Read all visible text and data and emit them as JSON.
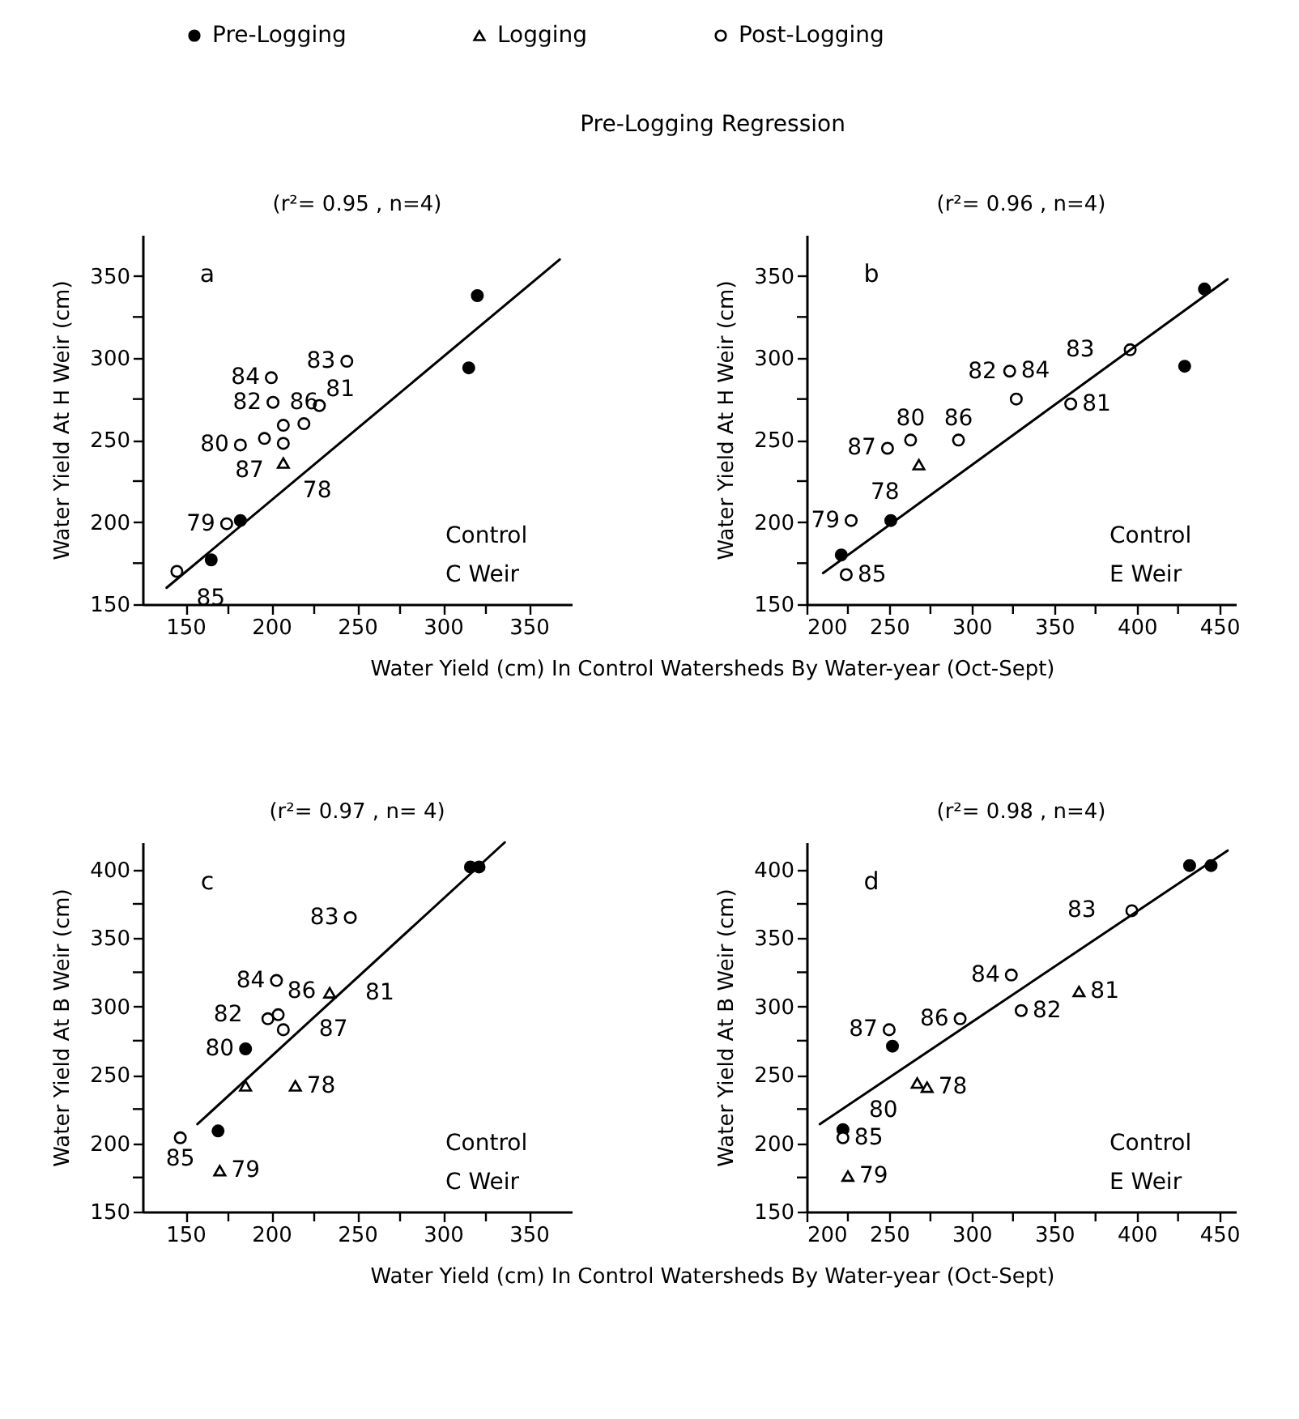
{
  "chart_data": [
    {
      "type": "scatter",
      "title": "a",
      "subtitle": "(r²= 0.95 , n=4)",
      "xlabel": "Water Yield (cm) In Control Watersheds By Water-year (Oct-Sept)",
      "ylabel": "Water Yield At H Weir (cm)",
      "legend": "top",
      "xlim": [
        125,
        375
      ],
      "ylim": [
        150,
        375
      ],
      "xticks": [
        150,
        {
          "value": 175,
          "label": null
        },
        200,
        {
          "value": 225,
          "label": null
        },
        250,
        {
          "value": 275,
          "label": null
        },
        300,
        {
          "value": 325,
          "label": null
        },
        350
      ],
      "yticks": [
        150,
        {
          "value": 175,
          "label": null
        },
        200,
        {
          "value": 225,
          "label": null
        },
        250,
        {
          "value": 275,
          "label": null
        },
        300,
        {
          "value": 325,
          "label": null
        },
        350
      ],
      "series": [
        {
          "name": "Pre-Logging",
          "type": "scatter",
          "marker": "circle",
          "color": "#000000",
          "x": [
            165,
            182,
            315,
            320
          ],
          "values": [
            177,
            201,
            294,
            338
          ]
        },
        {
          "name": "Logging",
          "type": "scatter",
          "marker": "triangle",
          "color": "#ffffff",
          "x": [
            207
          ],
          "values": [
            236
          ]
        },
        {
          "name": "Post-Logging",
          "type": "scatter",
          "marker": "circle",
          "color": "#ffffff",
          "x": [
            145,
            174,
            182,
            196,
            200,
            201,
            207,
            207,
            219,
            228,
            244
          ],
          "values": [
            170,
            199,
            247,
            251,
            288,
            273,
            259,
            248,
            260,
            271,
            298
          ]
        },
        {
          "type": "line",
          "color": "#000000",
          "x": [
            139,
            368
          ],
          "values": [
            160,
            360
          ]
        }
      ],
      "annotations": [
        {
          "text": "Pre-Logging Regression"
        },
        "Control",
        "C Weir",
        {
          "text": "84",
          "x": 200,
          "y": 288
        },
        {
          "text": "82",
          "x": 201,
          "y": 273
        },
        {
          "text": "80",
          "x": 182,
          "y": 247
        },
        {
          "text": "86",
          "x": 219,
          "y": 260
        },
        {
          "text": "87",
          "x": 207,
          "y": 248
        },
        {
          "text": "83",
          "x": 244,
          "y": 298
        },
        {
          "text": "81",
          "x": 228,
          "y": 271
        },
        {
          "text": "79",
          "x": 174,
          "y": 199
        },
        {
          "text": "78",
          "x": 207,
          "y": 236
        },
        {
          "text": "85",
          "x": 145,
          "y": 170
        }
      ]
    },
    {
      "type": "scatter",
      "title": "b",
      "subtitle": "(r²= 0.96 , n=4)",
      "ylabel": "Water Yield At H Weir (cm)",
      "xlim": [
        200,
        460
      ],
      "ylim": [
        150,
        375
      ],
      "xticks": [
        200,
        {
          "value": 225,
          "label": null
        },
        250,
        {
          "value": 275,
          "label": null
        },
        300,
        {
          "value": 325,
          "label": null
        },
        350,
        {
          "value": 375,
          "label": null
        },
        400,
        {
          "value": 425,
          "label": null
        },
        450
      ],
      "yticks": [
        150,
        {
          "value": 175,
          "label": null
        },
        200,
        {
          "value": 225,
          "label": null
        },
        250,
        {
          "value": 275,
          "label": null
        },
        300,
        {
          "value": 325,
          "label": null
        },
        350
      ],
      "series": [
        {
          "type": "scatter",
          "marker": "circle",
          "color": "#000000",
          "x": [
            221,
            251,
            429,
            441
          ],
          "values": [
            180,
            201,
            295,
            342
          ]
        },
        {
          "type": "scatter",
          "marker": "triangle",
          "color": "#ffffff",
          "x": [
            268
          ],
          "values": [
            235
          ]
        },
        {
          "type": "scatter",
          "marker": "circle",
          "color": "#ffffff",
          "x": [
            224,
            227,
            249,
            263,
            292,
            323,
            327,
            360,
            396
          ],
          "values": [
            168,
            201,
            245,
            250,
            250,
            292,
            275,
            272,
            305
          ]
        },
        {
          "type": "line",
          "color": "#000000",
          "x": [
            210,
            455
          ],
          "values": [
            169,
            348
          ]
        }
      ],
      "annotations": [
        "Control",
        "E Weir",
        {
          "text": "80",
          "x": 263,
          "y": 250
        },
        {
          "text": "87",
          "x": 249,
          "y": 245
        },
        {
          "text": "79",
          "x": 227,
          "y": 201
        },
        {
          "text": "78",
          "x": 268,
          "y": 235
        },
        {
          "text": "85",
          "x": 224,
          "y": 168
        },
        {
          "text": "86",
          "x": 292,
          "y": 250
        },
        {
          "text": "82",
          "x": 327,
          "y": 275
        },
        {
          "text": "84",
          "x": 323,
          "y": 292
        },
        {
          "text": "83",
          "x": 396,
          "y": 305
        },
        {
          "text": "81",
          "x": 360,
          "y": 272
        }
      ]
    },
    {
      "type": "scatter",
      "title": "c",
      "subtitle": "(r²= 0.97 , n= 4)",
      "xlabel": "Water Yield (cm) In Control Watersheds By Water-year (Oct-Sept)",
      "ylabel": "Water Yield At B Weir (cm)",
      "xlim": [
        125,
        375
      ],
      "ylim": [
        150,
        420
      ],
      "xticks": [
        150,
        {
          "value": 175,
          "label": null
        },
        200,
        {
          "value": 225,
          "label": null
        },
        250,
        {
          "value": 275,
          "label": null
        },
        300,
        {
          "value": 325,
          "label": null
        },
        350
      ],
      "yticks": [
        150,
        {
          "value": 175,
          "label": null
        },
        200,
        {
          "value": 225,
          "label": null
        },
        250,
        {
          "value": 275,
          "label": null
        },
        300,
        {
          "value": 325,
          "label": null
        },
        350,
        {
          "value": 375,
          "label": null
        },
        400
      ],
      "series": [
        {
          "type": "scatter",
          "marker": "circle",
          "color": "#000000",
          "x": [
            169,
            185,
            316,
            321
          ],
          "values": [
            209,
            269,
            402,
            402
          ]
        },
        {
          "type": "scatter",
          "marker": "triangle",
          "color": "#ffffff",
          "x": [
            170,
            185,
            214,
            234
          ],
          "values": [
            180,
            242,
            242,
            310
          ]
        },
        {
          "type": "scatter",
          "marker": "circle",
          "color": "#ffffff",
          "x": [
            147,
            198,
            204,
            207,
            203,
            246
          ],
          "values": [
            204,
            291,
            294,
            283,
            319,
            365
          ]
        },
        {
          "type": "line",
          "color": "#000000",
          "x": [
            157,
            336
          ],
          "values": [
            214,
            420
          ]
        }
      ],
      "annotations": [
        "Control",
        "C Weir",
        {
          "text": "84",
          "x": 203,
          "y": 319
        },
        {
          "text": "82",
          "x": 204,
          "y": 294
        },
        {
          "text": "86",
          "x": 198,
          "y": 291
        },
        {
          "text": "80",
          "x": 185,
          "y": 269
        },
        {
          "text": "83",
          "x": 246,
          "y": 365
        },
        {
          "text": "81",
          "x": 234,
          "y": 310
        },
        {
          "text": "87",
          "x": 207,
          "y": 283
        },
        {
          "text": "78",
          "x": 214,
          "y": 242
        },
        {
          "text": "85",
          "x": 147,
          "y": 204
        },
        {
          "text": "79",
          "x": 170,
          "y": 180
        }
      ]
    },
    {
      "type": "scatter",
      "title": "d",
      "subtitle": "(r²= 0.98 , n=4)",
      "ylabel": "Water Yield At B Weir (cm)",
      "xlim": [
        200,
        460
      ],
      "ylim": [
        150,
        420
      ],
      "xticks": [
        200,
        {
          "value": 225,
          "label": null
        },
        250,
        {
          "value": 275,
          "label": null
        },
        300,
        {
          "value": 325,
          "label": null
        },
        350,
        {
          "value": 375,
          "label": null
        },
        400,
        {
          "value": 425,
          "label": null
        },
        450
      ],
      "yticks": [
        150,
        {
          "value": 175,
          "label": null
        },
        200,
        {
          "value": 225,
          "label": null
        },
        250,
        {
          "value": 275,
          "label": null
        },
        300,
        {
          "value": 325,
          "label": null
        },
        350,
        {
          "value": 375,
          "label": null
        },
        400
      ],
      "series": [
        {
          "type": "scatter",
          "marker": "circle",
          "color": "#000000",
          "x": [
            222,
            252,
            432,
            445
          ],
          "values": [
            210,
            271,
            403,
            403
          ]
        },
        {
          "type": "scatter",
          "marker": "triangle",
          "color": "#ffffff",
          "x": [
            225,
            267,
            273,
            365
          ],
          "values": [
            176,
            244,
            241,
            311
          ]
        },
        {
          "type": "scatter",
          "marker": "circle",
          "color": "#ffffff",
          "x": [
            222,
            250,
            293,
            324,
            330,
            397
          ],
          "values": [
            204,
            283,
            291,
            323,
            297,
            370
          ]
        },
        {
          "type": "line",
          "color": "#000000",
          "x": [
            208,
            455
          ],
          "values": [
            214,
            414
          ]
        }
      ],
      "annotations": [
        "Control",
        "E Weir",
        {
          "text": "83",
          "x": 397,
          "y": 370
        },
        {
          "text": "84",
          "x": 324,
          "y": 323
        },
        {
          "text": "86",
          "x": 293,
          "y": 291
        },
        {
          "text": "87",
          "x": 250,
          "y": 283
        },
        {
          "text": "82",
          "x": 330,
          "y": 297
        },
        {
          "text": "81",
          "x": 365,
          "y": 311
        },
        {
          "text": "78",
          "x": 273,
          "y": 241
        },
        {
          "text": "80",
          "x": 267,
          "y": 244
        },
        {
          "text": "85",
          "x": 222,
          "y": 204
        },
        {
          "text": "79",
          "x": 225,
          "y": 176
        }
      ]
    }
  ]
}
